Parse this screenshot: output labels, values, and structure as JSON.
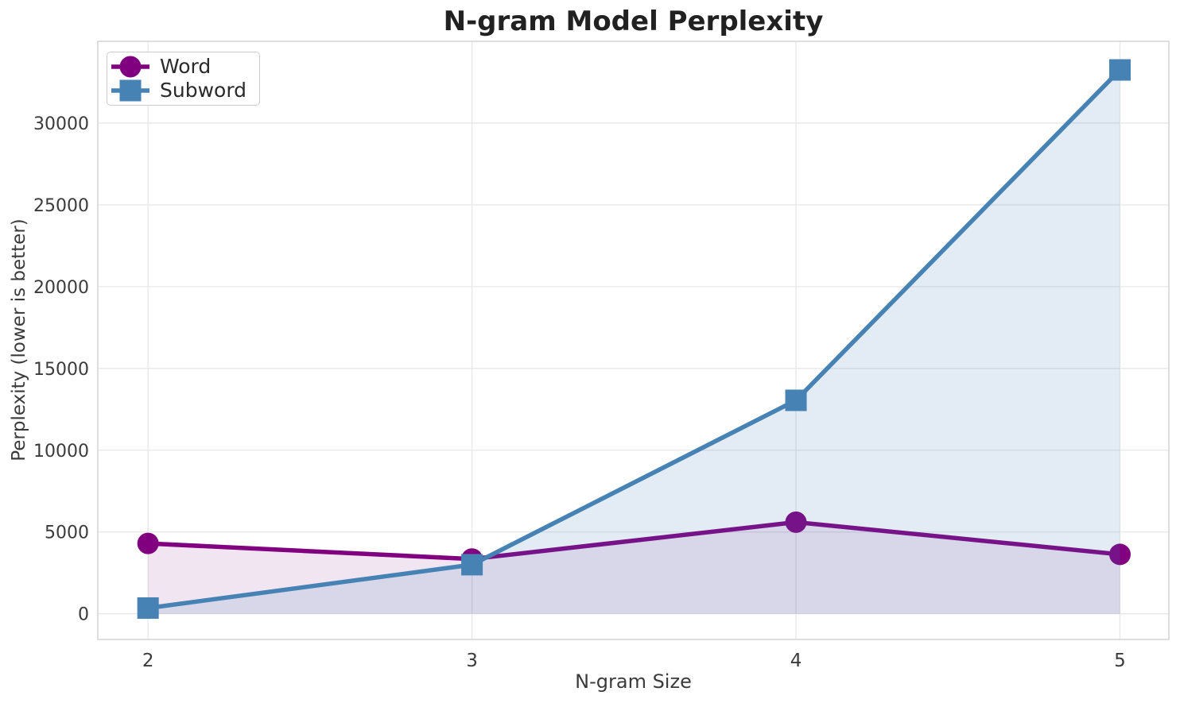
{
  "chart_data": {
    "type": "line",
    "title": "N-gram Model Perplexity",
    "xlabel": "N-gram Size",
    "ylabel": "Perplexity (lower is better)",
    "x": [
      2,
      3,
      4,
      5
    ],
    "series": [
      {
        "name": "Word",
        "marker": "circle",
        "color": "#800080",
        "fill_opacity": 0.1,
        "values": [
          4300,
          3350,
          5600,
          3630
        ]
      },
      {
        "name": "Subword",
        "marker": "square",
        "color": "#4682B4",
        "fill_opacity": 0.15,
        "values": [
          350,
          3000,
          13050,
          33250
        ]
      }
    ],
    "xticks": [
      2,
      3,
      4,
      5
    ],
    "yticks": [
      0,
      5000,
      10000,
      15000,
      20000,
      25000,
      30000
    ],
    "xlim": [
      1.845,
      5.151
    ],
    "ylim": [
      -1570,
      35000
    ],
    "grid": true,
    "area_fill_to": 0,
    "legend_position": "upper-left"
  },
  "styles": {
    "grid_color": "#E7E7E7",
    "spine_color": "#D4D4D4",
    "tick_color": "#3B3B3B",
    "title_color": "#212121",
    "legend_border": "#CCCCCC",
    "background": "#FFFFFF"
  }
}
